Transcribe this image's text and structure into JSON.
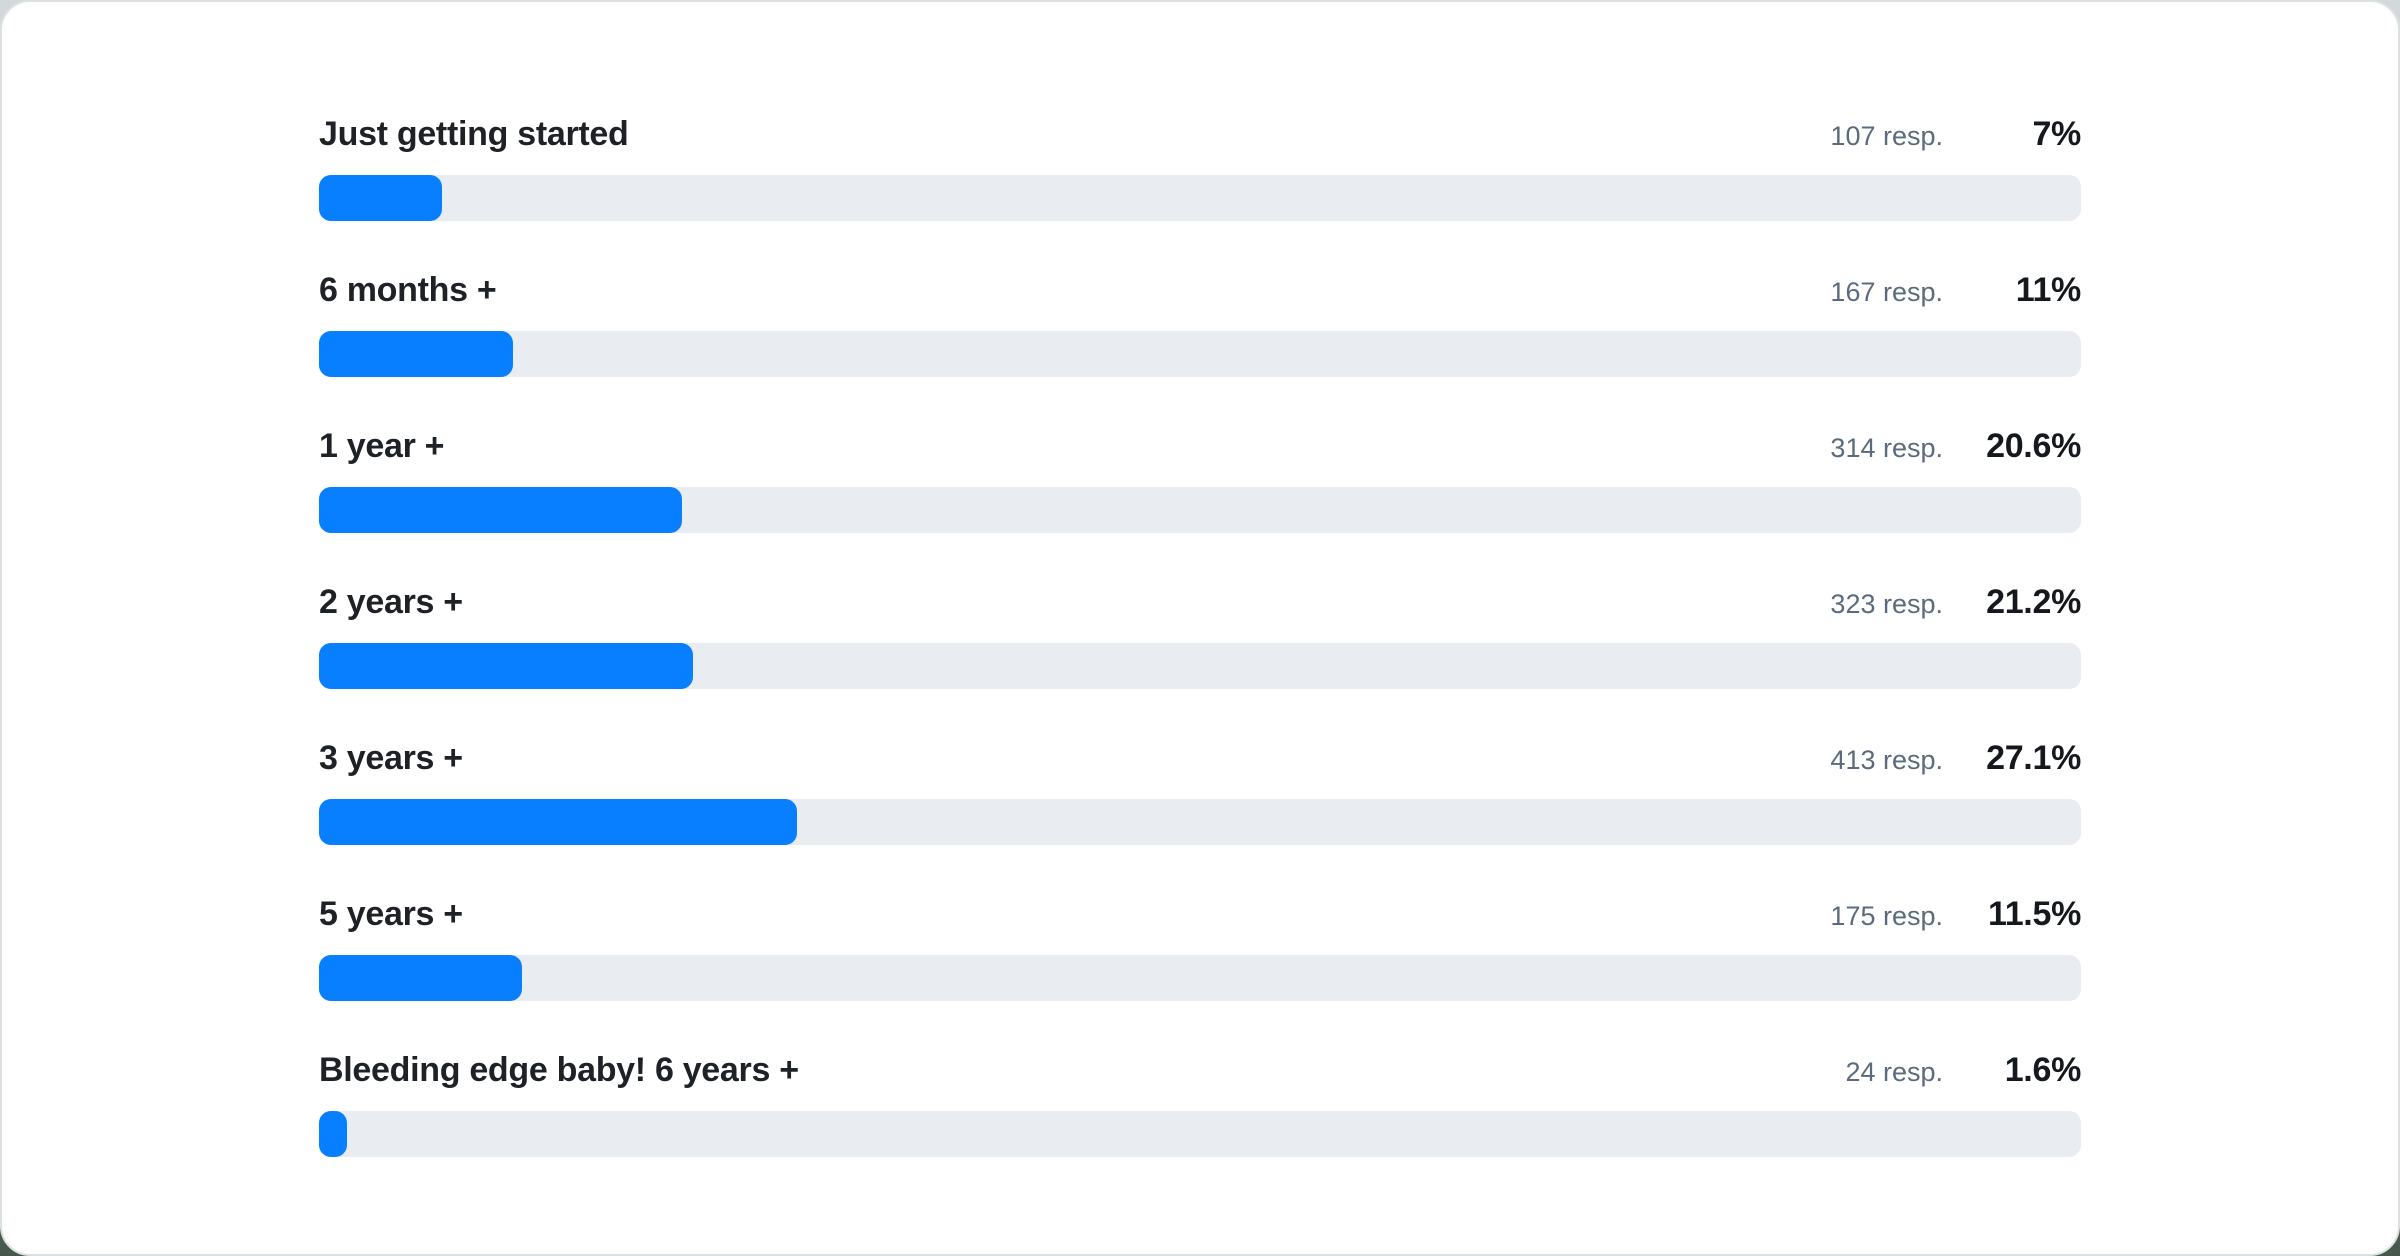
{
  "colors": {
    "accent": "#077fff",
    "track": "#e9edf1",
    "label_text": "#1e2126",
    "muted_text": "#5b6b7b",
    "percent_text": "#15181d",
    "card_background": "#ffffff"
  },
  "rows": [
    {
      "label": "Just getting started",
      "responses": "107 resp.",
      "percent": "7%",
      "value": 7.0
    },
    {
      "label": "6 months +",
      "responses": "167 resp.",
      "percent": "11%",
      "value": 11.0
    },
    {
      "label": "1 year +",
      "responses": "314 resp.",
      "percent": "20.6%",
      "value": 20.6
    },
    {
      "label": "2 years +",
      "responses": "323 resp.",
      "percent": "21.2%",
      "value": 21.2
    },
    {
      "label": "3 years +",
      "responses": "413 resp.",
      "percent": "27.1%",
      "value": 27.1
    },
    {
      "label": "5 years +",
      "responses": "175 resp.",
      "percent": "11.5%",
      "value": 11.5
    },
    {
      "label": "Bleeding edge baby! 6 years +",
      "responses": "24 resp.",
      "percent": "1.6%",
      "value": 1.6
    }
  ],
  "chart_data": {
    "type": "bar",
    "orientation": "horizontal",
    "categories": [
      "Just getting started",
      "6 months +",
      "1 year +",
      "2 years +",
      "3 years +",
      "5 years +",
      "Bleeding edge baby! 6 years +"
    ],
    "series": [
      {
        "name": "responses",
        "values": [
          107,
          167,
          314,
          323,
          413,
          175,
          24
        ]
      },
      {
        "name": "percent",
        "values": [
          7.0,
          11.0,
          20.6,
          21.2,
          27.1,
          11.5,
          1.6
        ]
      }
    ],
    "title": "",
    "xlabel": "",
    "ylabel": "",
    "xlim": [
      0,
      100
    ],
    "grid": false,
    "legend_position": "none",
    "bar_color": "#077fff",
    "track_color": "#e9edf1"
  }
}
